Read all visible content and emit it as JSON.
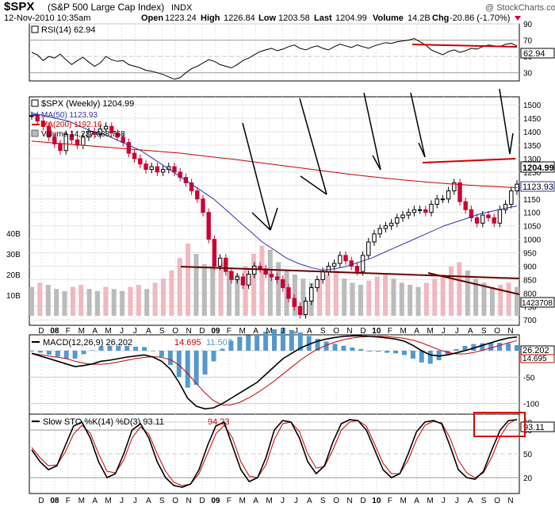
{
  "header": {
    "symbol": "$SPX",
    "name": "(S&P 500 Large Cap Index)",
    "exchange": "INDX",
    "watermark": "@ StockCharts.com",
    "date": "12-Nov-2010 10:35am",
    "open_label": "Open",
    "open": "1223.24",
    "high_label": "High",
    "high": "1226.84",
    "low_label": "Low",
    "low": "1203.58",
    "last_label": "Last",
    "last": "1204.99",
    "volume_label": "Volume",
    "volume": "14.2B",
    "chg_label": "Chg",
    "chg": "-20.86 (-1.70%)"
  },
  "colors": {
    "up": "#000000",
    "down": "#cc0033",
    "ma50": "#3333aa",
    "ma200": "#cc0000",
    "volume_up": "#bbbbbb",
    "volume_down": "#f0b8c0",
    "macd_hist": "#5599cc",
    "trend": "#6b0000",
    "arrow": "#000000"
  },
  "chart_data": [
    {
      "type": "line",
      "title": "RSI(14) 62.94",
      "legend": [
        {
          "name": "RSI(14) 62.94",
          "color": "#000000"
        }
      ],
      "ylim": [
        20,
        90
      ],
      "y_ticks": [
        "90",
        "70",
        "50",
        "30"
      ],
      "last_value": "62.94",
      "values": [
        55,
        52,
        45,
        50,
        48,
        53,
        46,
        40,
        45,
        49,
        43,
        38,
        42,
        50,
        46,
        44,
        45,
        40,
        38,
        36,
        33,
        32,
        30,
        28,
        25,
        22,
        24,
        30,
        35,
        38,
        42,
        46,
        44,
        40,
        38,
        36,
        40,
        45,
        48,
        52,
        56,
        58,
        60,
        57,
        59,
        62,
        64,
        60,
        58,
        61,
        63,
        60,
        58,
        62,
        65,
        63,
        61,
        64,
        62,
        60,
        63,
        65,
        67,
        66,
        68,
        69,
        70,
        72,
        68,
        64,
        58,
        55,
        52,
        56,
        58,
        55,
        57,
        60,
        59,
        62,
        64,
        63,
        62,
        65,
        66,
        63
      ]
    },
    {
      "type": "candlestick",
      "title": "$SPX (Weekly) 1204.99",
      "legend": [
        {
          "name": "$SPX (Weekly) 1204.99",
          "color": "#000000"
        },
        {
          "name": "MA(50) 1123.93",
          "color": "#3333aa"
        },
        {
          "name": "MA(200) 1192.16",
          "color": "#cc0000"
        },
        {
          "name": "Volume 14,237,088,768",
          "color": "#888888"
        }
      ],
      "x_ticks": [
        "D",
        "08",
        "F",
        "M",
        "A",
        "M",
        "J",
        "J",
        "A",
        "S",
        "O",
        "N",
        "D",
        "09",
        "F",
        "M",
        "A",
        "M",
        "J",
        "J",
        "A",
        "S",
        "O",
        "N",
        "D",
        "10",
        "F",
        "M",
        "A",
        "M",
        "J",
        "J",
        "A",
        "S",
        "O",
        "N"
      ],
      "price_ticks": [
        "1500",
        "1450",
        "1400",
        "1350",
        "1300",
        "1250",
        "1200",
        "1150",
        "1100",
        "1050",
        "1000",
        "950",
        "900",
        "850",
        "800",
        "750",
        "700"
      ],
      "volume_ticks": [
        "40B",
        "30B",
        "20B",
        "10B"
      ],
      "last_price_label": "1204.99",
      "ma50_label": "1123.93",
      "volume_label": "1423708",
      "closes": [
        1460,
        1440,
        1420,
        1380,
        1355,
        1330,
        1390,
        1370,
        1350,
        1380,
        1400,
        1390,
        1410,
        1420,
        1395,
        1380,
        1360,
        1320,
        1300,
        1280,
        1260,
        1270,
        1250,
        1260,
        1270,
        1250,
        1230,
        1210,
        1180,
        1150,
        1100,
        1000,
        900,
        930,
        880,
        850,
        860,
        830,
        870,
        900,
        890,
        870,
        860,
        850,
        820,
        780,
        750,
        720,
        770,
        820,
        850,
        880,
        900,
        910,
        940,
        920,
        900,
        880,
        940,
        990,
        1020,
        1040,
        1050,
        1060,
        1080,
        1090,
        1100,
        1110,
        1110,
        1100,
        1130,
        1150,
        1150,
        1180,
        1210,
        1140,
        1110,
        1080,
        1060,
        1090,
        1080,
        1060,
        1110,
        1130,
        1180,
        1205
      ],
      "ma50": [
        1470,
        1460,
        1450,
        1440,
        1420,
        1400,
        1390,
        1370,
        1350,
        1330,
        1300,
        1270,
        1240,
        1210,
        1180,
        1150,
        1110,
        1070,
        1030,
        990,
        960,
        930,
        910,
        895,
        885,
        890,
        900,
        915,
        930,
        950,
        970,
        990,
        1010,
        1030,
        1050,
        1065,
        1080,
        1095,
        1105,
        1115,
        1124
      ],
      "ma200": [
        1365,
        1360,
        1355,
        1350,
        1345,
        1340,
        1335,
        1330,
        1325,
        1320,
        1312,
        1305,
        1298,
        1290,
        1282,
        1274,
        1266,
        1258,
        1250,
        1242,
        1235,
        1228,
        1222,
        1216,
        1211,
        1206,
        1202,
        1198,
        1195,
        1192
      ],
      "volumes": [
        14,
        16,
        15,
        13,
        12,
        14,
        15,
        13,
        12,
        14,
        13,
        12,
        14,
        15,
        13,
        16,
        18,
        22,
        28,
        35,
        30,
        25,
        24,
        26,
        22,
        20,
        24,
        30,
        34,
        32,
        26,
        22,
        20,
        18,
        16,
        18,
        20,
        22,
        18,
        16,
        15,
        17,
        19,
        20,
        18,
        16,
        15,
        14,
        16,
        18,
        20,
        24,
        26,
        22,
        18,
        16,
        14,
        15,
        16,
        14
      ]
    },
    {
      "type": "line",
      "title": "MACD(12,26,9) 26.202, 14.695, 11.507",
      "legend": [
        {
          "name": "MACD(12,26,9) 26.202",
          "color": "#000000"
        },
        {
          "name": "14.695",
          "color": "#cc0000"
        },
        {
          "name": "11.507",
          "color": "#5599cc"
        }
      ],
      "ylim": [
        -120,
        30
      ],
      "y_ticks": [
        "0",
        "-50",
        "-100"
      ],
      "last_value_1": "26.202",
      "last_value_2": "14.695",
      "macd": [
        -5,
        -10,
        -15,
        -20,
        -25,
        -30,
        -28,
        -25,
        -20,
        -18,
        -15,
        -12,
        -10,
        -8,
        -12,
        -20,
        -35,
        -60,
        -90,
        -105,
        -110,
        -108,
        -100,
        -90,
        -80,
        -70,
        -60,
        -45,
        -30,
        -15,
        -5,
        5,
        12,
        18,
        22,
        25,
        27,
        28,
        28,
        27,
        26,
        24,
        22,
        18,
        10,
        0,
        -8,
        -10,
        -8,
        -4,
        0,
        5,
        10,
        15,
        20,
        24,
        26
      ]
    },
    {
      "type": "line",
      "title": "Slow STO %K(14) %D(3) 93.11, 94.23",
      "legend": [
        {
          "name": "Slow STO %K(14) %D(3) 93.11",
          "color": "#000000"
        },
        {
          "name": "94.23",
          "color": "#cc0000"
        }
      ],
      "ylim": [
        0,
        100
      ],
      "y_ticks": [
        "90",
        "80",
        "50",
        "20"
      ],
      "last_value": "93.11",
      "k": [
        55,
        40,
        30,
        35,
        60,
        85,
        90,
        70,
        40,
        20,
        25,
        50,
        80,
        88,
        70,
        40,
        20,
        10,
        8,
        12,
        30,
        60,
        85,
        90,
        60,
        30,
        15,
        20,
        45,
        80,
        92,
        90,
        70,
        40,
        25,
        35,
        65,
        88,
        93,
        92,
        80,
        55,
        30,
        20,
        25,
        50,
        78,
        90,
        92,
        88,
        60,
        30,
        20,
        18,
        28,
        55,
        80,
        92,
        93
      ],
      "d": [
        58,
        45,
        35,
        36,
        52,
        75,
        86,
        76,
        50,
        28,
        26,
        42,
        70,
        84,
        75,
        50,
        28,
        14,
        10,
        12,
        25,
        50,
        75,
        86,
        70,
        40,
        22,
        20,
        36,
        68,
        88,
        90,
        78,
        50,
        32,
        34,
        55,
        80,
        90,
        92,
        85,
        62,
        38,
        25,
        25,
        42,
        68,
        86,
        91,
        89,
        70,
        42,
        26,
        20,
        26,
        46,
        72,
        88,
        94
      ]
    }
  ]
}
